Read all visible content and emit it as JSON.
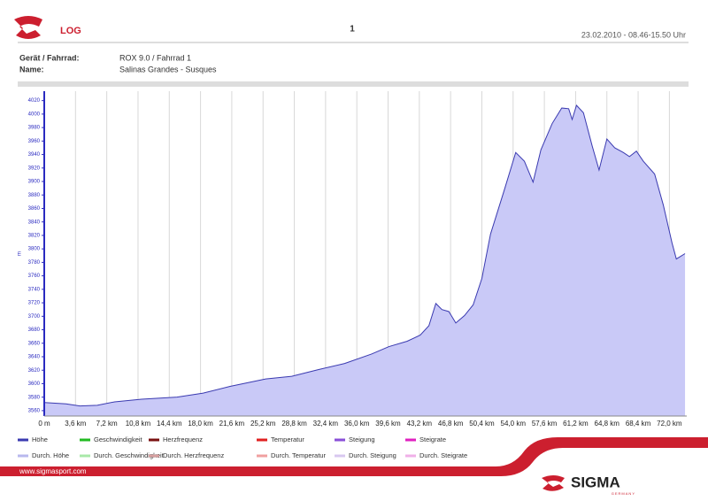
{
  "header": {
    "title": "LOG",
    "page": "1",
    "date": "23.02.2010 - 08.46-15.50 Uhr"
  },
  "info": [
    {
      "label": "Gerät / Fahrrad:",
      "value": "ROX 9.0 / Fahrrad 1"
    },
    {
      "label": "Name:",
      "value": "Salinas Grandes - Susques"
    }
  ],
  "chart_data": {
    "type": "area",
    "y_label": "m",
    "x": [
      0,
      2.5,
      4.1,
      6.1,
      8.1,
      11.2,
      15.3,
      18.3,
      21.4,
      25.5,
      28.5,
      31.6,
      34.6,
      37.7,
      39.7,
      41.8,
      43.3,
      44.3,
      45.1,
      45.8,
      46.6,
      47.4,
      48.4,
      49.4,
      50.4,
      51.4,
      53.0,
      54.3,
      55.3,
      56.3,
      57.2,
      58.5,
      59.6,
      60.4,
      60.8,
      61.3,
      62.1,
      63.1,
      63.9,
      64.8,
      65.7,
      66.7,
      67.4,
      68.2,
      69.0,
      70.3,
      71.3,
      72.3,
      72.8,
      73.3,
      73.8
    ],
    "series": [
      {
        "name": "Höhe",
        "color": "#3a3ab0",
        "fill": "#c9c9f7",
        "values": [
          3572,
          3570,
          3567,
          3568,
          3573,
          3577,
          3580,
          3586,
          3596,
          3607,
          3611,
          3621,
          3630,
          3644,
          3655,
          3663,
          3672,
          3686,
          3719,
          3710,
          3707,
          3690,
          3701,
          3717,
          3756,
          3822,
          3888,
          3943,
          3930,
          3899,
          3947,
          3986,
          4009,
          4008,
          3992,
          4013,
          4002,
          3953,
          3917,
          3963,
          3950,
          3943,
          3937,
          3945,
          3930,
          3911,
          3865,
          3809,
          3785,
          3789,
          3793
        ]
      }
    ],
    "xlim": [
      0,
      74.0
    ],
    "ylim": [
      3552,
      4034
    ],
    "xticks": [
      {
        "value": 0,
        "label": "0 m"
      },
      {
        "value": 3.6,
        "label": "3,6 km"
      },
      {
        "value": 7.2,
        "label": "7,2 km"
      },
      {
        "value": 10.8,
        "label": "10,8 km"
      },
      {
        "value": 14.4,
        "label": "14,4 km"
      },
      {
        "value": 18.0,
        "label": "18,0 km"
      },
      {
        "value": 21.6,
        "label": "21,6 km"
      },
      {
        "value": 25.2,
        "label": "25,2 km"
      },
      {
        "value": 28.8,
        "label": "28,8 km"
      },
      {
        "value": 32.4,
        "label": "32,4 km"
      },
      {
        "value": 36.0,
        "label": "36,0 km"
      },
      {
        "value": 39.6,
        "label": "39,6 km"
      },
      {
        "value": 43.2,
        "label": "43,2 km"
      },
      {
        "value": 46.8,
        "label": "46,8 km"
      },
      {
        "value": 50.4,
        "label": "50,4 km"
      },
      {
        "value": 54.0,
        "label": "54,0 km"
      },
      {
        "value": 57.6,
        "label": "57,6 km"
      },
      {
        "value": 61.2,
        "label": "61,2 km"
      },
      {
        "value": 64.8,
        "label": "64,8 km"
      },
      {
        "value": 68.4,
        "label": "68,4 km"
      },
      {
        "value": 72.0,
        "label": "72,0 km"
      }
    ],
    "yticks": [
      3560,
      3580,
      3600,
      3620,
      3640,
      3660,
      3680,
      3700,
      3720,
      3740,
      3760,
      3780,
      3800,
      3820,
      3840,
      3860,
      3880,
      3900,
      3920,
      3940,
      3960,
      3980,
      4000,
      4020
    ],
    "grid": "x"
  },
  "legend_extra": [
    {
      "name": "Geschwindigkeit",
      "color": "#22bb22"
    },
    {
      "name": "Herzfrequenz",
      "color": "#7a1010"
    },
    {
      "name": "Temperatur",
      "color": "#e02020"
    },
    {
      "name": "Steigung",
      "color": "#8a4fd8"
    },
    {
      "name": "Steigrate",
      "color": "#e020c0"
    },
    {
      "name": "Durch. Höhe",
      "color": "#b8b8ee"
    },
    {
      "name": "Durch. Geschwindigkeit",
      "color": "#a8e8a8"
    },
    {
      "name": "Durch. Herzfrequenz",
      "color": "#d8a0a0"
    },
    {
      "name": "Durch. Temperatur",
      "color": "#f0a0a0"
    },
    {
      "name": "Durch. Steigung",
      "color": "#d8c8f0"
    },
    {
      "name": "Durch. Steigrate",
      "color": "#f0b0e8"
    }
  ],
  "footer": {
    "url": "www.sigmasport.com",
    "brand": "SIGMA",
    "country": "GERMANY"
  }
}
